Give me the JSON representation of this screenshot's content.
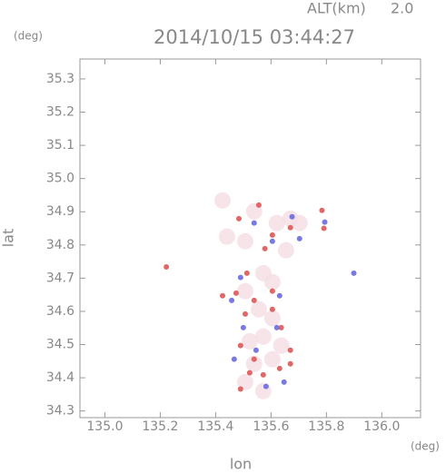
{
  "chart_data": {
    "type": "scatter",
    "title": "2014/10/15 03:44:27",
    "altitude_label": "ALT(km)",
    "altitude": "2.0",
    "x_label": "lon",
    "y_label": "lat",
    "x_unit": "(deg)",
    "y_unit": "(deg)",
    "xlim": [
      134.91,
      136.14
    ],
    "ylim": [
      34.28,
      35.36
    ],
    "xticks": [
      {
        "value": 135,
        "label": "135.0"
      },
      135.2,
      135.4,
      135.6,
      135.8,
      {
        "value": 136,
        "label": "136.0"
      }
    ],
    "yticks": [
      34.3,
      34.4,
      34.5,
      34.6,
      34.7,
      34.8,
      34.9,
      {
        "value": 35,
        "label": "35.0"
      },
      35.1,
      35.2,
      35.3
    ],
    "series": [
      {
        "color": "#f4dde4",
        "x": [
          135.425,
          135.539,
          135.621,
          135.654,
          135.507,
          135.572,
          135.605,
          135.507,
          135.556,
          135.605,
          135.572,
          135.523,
          135.637,
          135.539,
          135.605,
          135.507,
          135.572,
          135.67,
          135.441,
          135.703
        ],
        "y": [
          34.934,
          34.901,
          34.866,
          34.784,
          34.811,
          34.715,
          34.688,
          34.661,
          34.606,
          34.579,
          34.524,
          34.51,
          34.497,
          34.442,
          34.456,
          34.387,
          34.36,
          34.879,
          34.825,
          34.866
        ]
      },
      {
        "color": "#e05555",
        "x": [
          135.784,
          135.791,
          135.222,
          135.67,
          135.556,
          135.605,
          135.513,
          135.539,
          135.474,
          135.605,
          135.507,
          135.637,
          135.49,
          135.67,
          135.539,
          135.523,
          135.572,
          135.631,
          135.67,
          135.49,
          135.605,
          135.425,
          135.578,
          135.484
        ],
        "y": [
          34.904,
          34.85,
          34.734,
          34.852,
          34.92,
          34.83,
          34.715,
          34.633,
          34.655,
          34.606,
          34.592,
          34.551,
          34.497,
          34.483,
          34.456,
          34.415,
          34.409,
          34.428,
          34.442,
          34.366,
          34.661,
          34.647,
          34.789,
          34.879
        ]
      },
      {
        "color": "#6a6ae0",
        "x": [
          135.794,
          135.703,
          135.605,
          135.539,
          135.899,
          135.467,
          135.582,
          135.546,
          135.621,
          135.5,
          135.631,
          135.49,
          135.647,
          135.458,
          135.676
        ],
        "y": [
          34.869,
          34.819,
          34.811,
          34.866,
          34.715,
          34.456,
          34.374,
          34.483,
          34.551,
          34.551,
          34.647,
          34.702,
          34.387,
          34.633,
          34.885
        ]
      }
    ]
  }
}
